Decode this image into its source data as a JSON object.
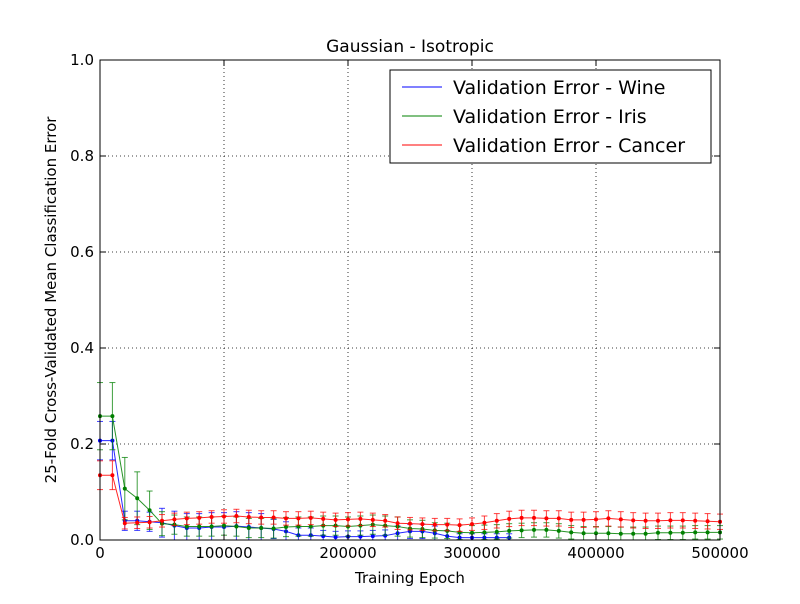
{
  "chart_data": {
    "type": "line",
    "title": "Gaussian - Isotropic",
    "xlabel": "Training Epoch",
    "ylabel": "25-Fold Cross-Validated Mean Classification Error",
    "xlim": [
      0,
      500000
    ],
    "ylim": [
      0,
      1.0
    ],
    "xticks": [
      0,
      100000,
      200000,
      300000,
      400000,
      500000
    ],
    "xtick_labels": [
      "0",
      "100000",
      "200000",
      "300000",
      "400000",
      "500000"
    ],
    "yticks": [
      0.0,
      0.2,
      0.4,
      0.6,
      0.8,
      1.0
    ],
    "ytick_labels": [
      "0.0",
      "0.2",
      "0.4",
      "0.6",
      "0.8",
      "1.0"
    ],
    "grid": true,
    "legend_position": "top-right",
    "series": [
      {
        "name": "Validation Error - Wine",
        "color": "#0000ff",
        "x": [
          0,
          10000,
          20000,
          30000,
          40000,
          50000,
          60000,
          70000,
          80000,
          90000,
          100000,
          110000,
          120000,
          130000,
          140000,
          150000,
          160000,
          170000,
          180000,
          190000,
          200000,
          210000,
          220000,
          230000,
          240000,
          250000,
          260000,
          270000,
          280000,
          290000,
          300000,
          310000,
          320000,
          330000
        ],
        "y": [
          0.207,
          0.207,
          0.04,
          0.04,
          0.038,
          0.036,
          0.03,
          0.025,
          0.025,
          0.027,
          0.027,
          0.029,
          0.027,
          0.025,
          0.023,
          0.018,
          0.01,
          0.01,
          0.008,
          0.006,
          0.007,
          0.007,
          0.008,
          0.009,
          0.014,
          0.018,
          0.018,
          0.014,
          0.008,
          0.005,
          0.005,
          0.005,
          0.005,
          0.005
        ],
        "err": [
          0.04,
          0.04,
          0.02,
          0.02,
          0.02,
          0.03,
          0.03,
          0.03,
          0.03,
          0.03,
          0.03,
          0.03,
          0.03,
          0.03,
          0.02,
          0.02,
          0.015,
          0.015,
          0.012,
          0.012,
          0.012,
          0.012,
          0.012,
          0.012,
          0.015,
          0.015,
          0.015,
          0.015,
          0.012,
          0.008,
          0.008,
          0.008,
          0.008,
          0.008
        ]
      },
      {
        "name": "Validation Error - Iris",
        "color": "#008000",
        "x": [
          0,
          10000,
          20000,
          30000,
          40000,
          50000,
          60000,
          70000,
          80000,
          90000,
          100000,
          110000,
          120000,
          130000,
          140000,
          150000,
          160000,
          170000,
          180000,
          190000,
          200000,
          210000,
          220000,
          230000,
          240000,
          250000,
          260000,
          270000,
          280000,
          290000,
          300000,
          310000,
          320000,
          330000,
          340000,
          350000,
          360000,
          370000,
          380000,
          390000,
          400000,
          410000,
          420000,
          430000,
          440000,
          450000,
          460000,
          470000,
          480000,
          490000,
          500000
        ],
        "y": [
          0.258,
          0.258,
          0.107,
          0.087,
          0.062,
          0.034,
          0.032,
          0.028,
          0.028,
          0.028,
          0.03,
          0.028,
          0.025,
          0.025,
          0.024,
          0.027,
          0.028,
          0.028,
          0.03,
          0.03,
          0.028,
          0.03,
          0.032,
          0.03,
          0.028,
          0.024,
          0.023,
          0.02,
          0.019,
          0.016,
          0.015,
          0.016,
          0.017,
          0.019,
          0.02,
          0.021,
          0.021,
          0.019,
          0.016,
          0.014,
          0.014,
          0.014,
          0.013,
          0.013,
          0.013,
          0.015,
          0.015,
          0.015,
          0.016,
          0.016,
          0.016
        ],
        "err": [
          0.07,
          0.07,
          0.065,
          0.055,
          0.04,
          0.025,
          0.02,
          0.02,
          0.02,
          0.02,
          0.02,
          0.02,
          0.02,
          0.02,
          0.02,
          0.02,
          0.02,
          0.02,
          0.02,
          0.02,
          0.02,
          0.02,
          0.02,
          0.02,
          0.02,
          0.018,
          0.018,
          0.016,
          0.016,
          0.015,
          0.015,
          0.015,
          0.015,
          0.015,
          0.015,
          0.015,
          0.015,
          0.015,
          0.014,
          0.014,
          0.014,
          0.014,
          0.014,
          0.014,
          0.014,
          0.014,
          0.014,
          0.014,
          0.014,
          0.014,
          0.014
        ]
      },
      {
        "name": "Validation Error - Cancer",
        "color": "#ff0000",
        "x": [
          0,
          10000,
          20000,
          30000,
          40000,
          50000,
          60000,
          70000,
          80000,
          90000,
          100000,
          110000,
          120000,
          130000,
          140000,
          150000,
          160000,
          170000,
          180000,
          190000,
          200000,
          210000,
          220000,
          230000,
          240000,
          250000,
          260000,
          270000,
          280000,
          290000,
          300000,
          310000,
          320000,
          330000,
          340000,
          350000,
          360000,
          370000,
          380000,
          390000,
          400000,
          410000,
          420000,
          430000,
          440000,
          450000,
          460000,
          470000,
          480000,
          490000,
          500000
        ],
        "y": [
          0.135,
          0.135,
          0.035,
          0.036,
          0.037,
          0.04,
          0.043,
          0.045,
          0.046,
          0.048,
          0.049,
          0.05,
          0.048,
          0.047,
          0.047,
          0.045,
          0.045,
          0.046,
          0.044,
          0.042,
          0.043,
          0.044,
          0.042,
          0.04,
          0.035,
          0.034,
          0.033,
          0.032,
          0.032,
          0.031,
          0.033,
          0.036,
          0.04,
          0.044,
          0.046,
          0.046,
          0.045,
          0.045,
          0.042,
          0.042,
          0.043,
          0.045,
          0.043,
          0.041,
          0.04,
          0.04,
          0.041,
          0.041,
          0.04,
          0.039,
          0.038
        ],
        "err": [
          0.03,
          0.03,
          0.012,
          0.012,
          0.012,
          0.013,
          0.013,
          0.013,
          0.013,
          0.013,
          0.014,
          0.014,
          0.014,
          0.014,
          0.014,
          0.014,
          0.014,
          0.014,
          0.014,
          0.014,
          0.014,
          0.014,
          0.014,
          0.013,
          0.013,
          0.013,
          0.013,
          0.013,
          0.013,
          0.013,
          0.013,
          0.014,
          0.015,
          0.016,
          0.016,
          0.016,
          0.016,
          0.016,
          0.016,
          0.016,
          0.016,
          0.016,
          0.016,
          0.016,
          0.016,
          0.016,
          0.016,
          0.016,
          0.016,
          0.016,
          0.016
        ]
      }
    ]
  }
}
